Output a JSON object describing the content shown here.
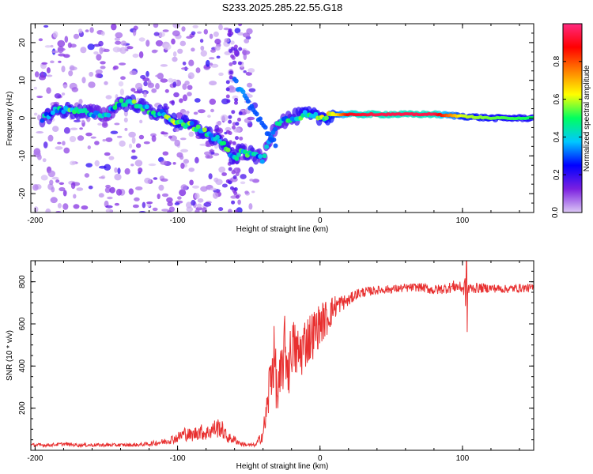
{
  "figure": {
    "title": "S233.2025.285.22.55.G18"
  },
  "chart_data": [
    {
      "type": "heatmap",
      "xlabel": "Height of straight line (km)",
      "ylabel": "Frequency (Hz)",
      "xlim": [
        -203,
        150
      ],
      "ylim": [
        -25,
        25
      ],
      "xticks": [
        -200,
        -100,
        0,
        100
      ],
      "yticks": [
        -20,
        -10,
        0,
        10,
        20
      ],
      "colorbar": {
        "label": "Normalized spectral amplitude",
        "range": [
          0.0,
          1.0
        ],
        "ticks": [
          0.0,
          0.2,
          0.4,
          0.6,
          0.8
        ],
        "colors": [
          "#dcc8f5",
          "#7b20e0",
          "#0000ff",
          "#00c8ff",
          "#00ff60",
          "#ffff00",
          "#ff8000",
          "#ff0000",
          "#ff2a80"
        ]
      },
      "ridge": {
        "x": [
          -193,
          -185,
          -175,
          -165,
          -150,
          -140,
          -130,
          -120,
          -110,
          -100,
          -90,
          -80,
          -70,
          -60,
          -55,
          -50,
          -45,
          -40,
          -35,
          -30,
          -20,
          -10,
          0,
          10,
          20,
          40,
          60,
          80,
          100,
          120,
          150
        ],
        "y": [
          0,
          2,
          2,
          1.5,
          1,
          4,
          4,
          2,
          1,
          -1,
          -2,
          -4,
          -6,
          -11,
          -8,
          -9.5,
          -10,
          -11,
          -5,
          -1,
          0,
          1,
          0,
          1,
          1,
          1,
          1,
          1,
          0.5,
          0,
          0
        ],
        "amplitude": [
          0.35,
          0.4,
          0.45,
          0.4,
          0.3,
          0.4,
          0.45,
          0.4,
          0.45,
          0.5,
          0.45,
          0.45,
          0.45,
          0.45,
          0.4,
          0.45,
          0.4,
          0.35,
          0.35,
          0.35,
          0.4,
          0.5,
          0.5,
          0.6,
          0.9,
          0.95,
          0.95,
          0.95,
          0.6,
          0.55,
          0.5
        ]
      },
      "branch": {
        "x": [
          -60,
          -55,
          -50,
          -45,
          -40,
          -35,
          -30
        ],
        "y": [
          10,
          7,
          4,
          1,
          -2,
          -5,
          -7
        ],
        "amplitude": [
          0.3,
          0.35,
          0.3,
          0.3,
          0.3,
          0.3,
          0.3
        ]
      }
    },
    {
      "type": "line",
      "xlabel": "Height of straight line (km)",
      "ylabel": "SNR (10 * v/v)",
      "xlim": [
        -203,
        150
      ],
      "ylim": [
        0,
        900
      ],
      "xticks": [
        -200,
        -100,
        0,
        100
      ],
      "yticks": [
        200,
        400,
        600,
        800
      ],
      "color": "#e83030",
      "series": [
        {
          "x": [
            -203,
            -190,
            -180,
            -170,
            -160,
            -150,
            -140,
            -130,
            -120,
            -110,
            -100,
            -95,
            -90,
            -85,
            -80,
            -75,
            -70,
            -65,
            -60,
            -55,
            -50,
            -45,
            -40,
            -37,
            -35,
            -32,
            -30,
            -27,
            -25,
            -22,
            -20,
            -15,
            -10,
            -5,
            0,
            5,
            10,
            15,
            20,
            25,
            30,
            40,
            50,
            60,
            70,
            80,
            90,
            95,
            100,
            103,
            105,
            110,
            120,
            130,
            140,
            150
          ],
          "y": [
            25,
            25,
            30,
            25,
            25,
            25,
            25,
            25,
            30,
            40,
            60,
            80,
            70,
            90,
            80,
            100,
            110,
            60,
            50,
            30,
            25,
            25,
            80,
            200,
            350,
            450,
            250,
            350,
            500,
            380,
            500,
            450,
            520,
            550,
            600,
            630,
            680,
            700,
            710,
            740,
            750,
            760,
            765,
            770,
            775,
            760,
            770,
            780,
            770,
            760,
            770,
            770,
            770,
            765,
            770,
            770
          ],
          "noise": [
            8,
            8,
            8,
            8,
            8,
            8,
            8,
            8,
            10,
            15,
            25,
            35,
            30,
            40,
            35,
            45,
            50,
            25,
            20,
            10,
            8,
            8,
            40,
            100,
            150,
            150,
            120,
            160,
            150,
            140,
            140,
            140,
            130,
            120,
            100,
            90,
            60,
            40,
            30,
            25,
            25,
            20,
            20,
            20,
            20,
            25,
            25,
            30,
            25,
            110,
            25,
            25,
            20,
            20,
            20,
            20
          ]
        }
      ]
    }
  ]
}
